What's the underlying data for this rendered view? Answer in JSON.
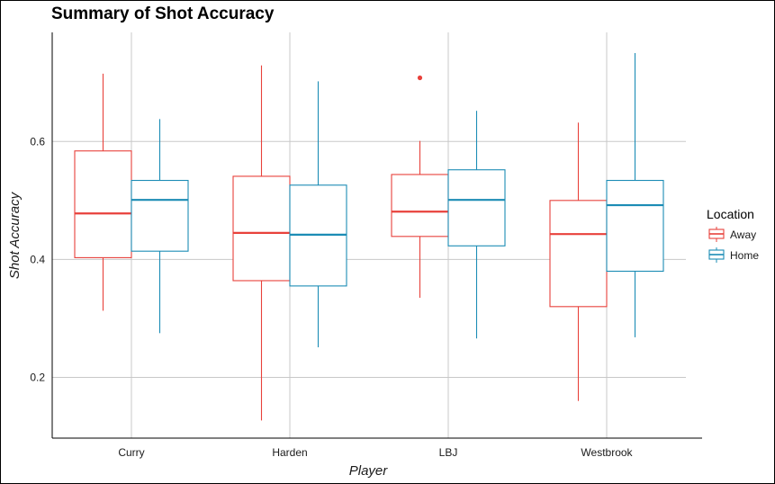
{
  "chart_data": {
    "type": "boxplot",
    "title": "Summary of Shot Accuracy",
    "xlabel": "Player",
    "ylabel": "Shot Accuracy",
    "categories": [
      "Curry",
      "Harden",
      "LBJ",
      "Westbrook"
    ],
    "ylim": [
      0.097,
      0.785
    ],
    "yticks": [
      0.2,
      0.4,
      0.6
    ],
    "ytick_labels": [
      "0.2",
      "0.4",
      "0.6"
    ],
    "grid": true,
    "legend": {
      "title": "Location",
      "position": "right"
    },
    "series": [
      {
        "name": "Away",
        "color": "#E8413B",
        "boxes": [
          {
            "min": 0.313,
            "q1": 0.403,
            "median": 0.478,
            "q3": 0.584,
            "max": 0.715,
            "outliers": []
          },
          {
            "min": 0.127,
            "q1": 0.364,
            "median": 0.445,
            "q3": 0.541,
            "max": 0.729,
            "outliers": []
          },
          {
            "min": 0.335,
            "q1": 0.439,
            "median": 0.481,
            "q3": 0.544,
            "max": 0.601,
            "outliers": [
              0.708
            ]
          },
          {
            "min": 0.16,
            "q1": 0.32,
            "median": 0.443,
            "q3": 0.5,
            "max": 0.632,
            "outliers": []
          }
        ]
      },
      {
        "name": "Home",
        "color": "#1B8CB5",
        "boxes": [
          {
            "min": 0.275,
            "q1": 0.414,
            "median": 0.501,
            "q3": 0.534,
            "max": 0.638,
            "outliers": []
          },
          {
            "min": 0.251,
            "q1": 0.355,
            "median": 0.442,
            "q3": 0.526,
            "max": 0.702,
            "outliers": []
          },
          {
            "min": 0.266,
            "q1": 0.423,
            "median": 0.501,
            "q3": 0.552,
            "max": 0.652,
            "outliers": []
          },
          {
            "min": 0.268,
            "q1": 0.38,
            "median": 0.492,
            "q3": 0.534,
            "max": 0.75,
            "outliers": []
          }
        ]
      }
    ]
  }
}
